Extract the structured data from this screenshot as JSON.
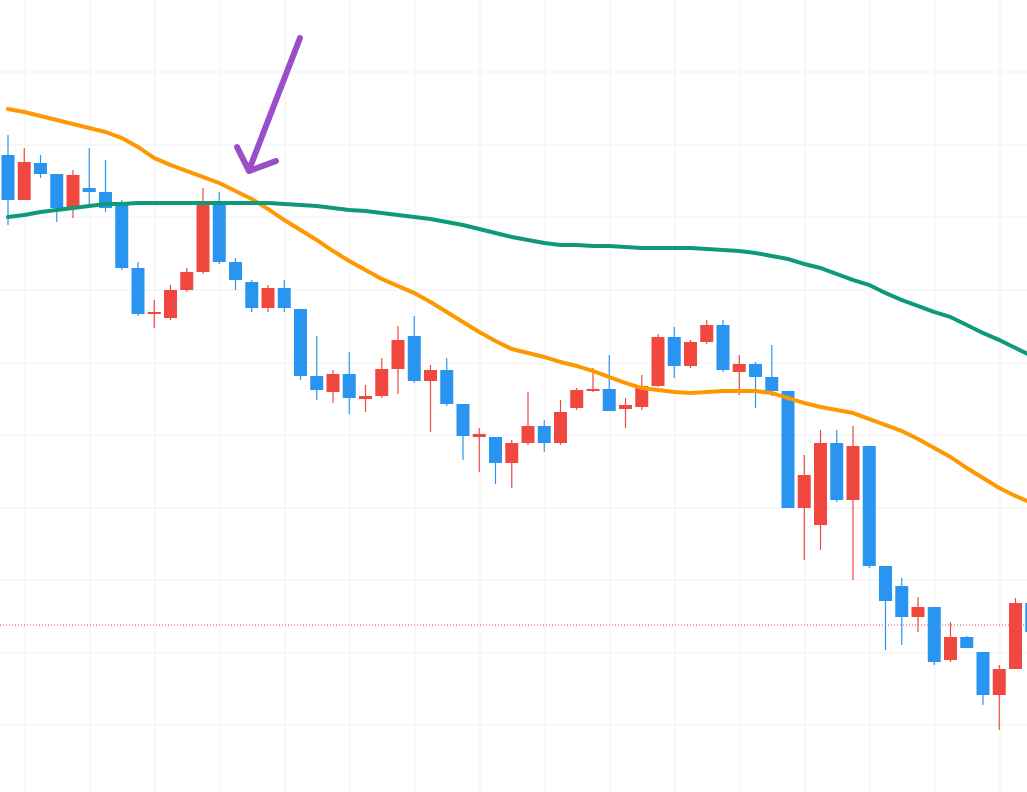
{
  "chart_data": {
    "type": "candlestick",
    "categories": [
      null,
      null,
      null,
      null,
      null,
      null,
      null,
      null,
      null,
      null,
      null,
      null,
      null,
      null,
      null,
      null,
      null,
      null,
      null,
      null,
      null,
      null,
      null,
      null,
      null,
      null,
      null,
      null,
      null,
      null,
      null,
      null,
      null,
      null,
      null,
      null,
      null,
      null,
      null,
      null,
      null,
      null,
      null,
      null,
      null,
      null,
      null,
      null,
      null,
      null,
      null,
      null,
      null,
      null,
      null,
      null,
      null,
      null,
      null,
      null,
      null,
      null,
      null,
      null
    ],
    "open": [
      84.5,
      80,
      83.7,
      82.6,
      79.2,
      81.2,
      80.8,
      79.7,
      73.2,
      68.6,
      68.2,
      71,
      72.8,
      79.7,
      73.8,
      71.8,
      69.2,
      71.2,
      69.1,
      62.4,
      60.8,
      62.6,
      60.1,
      60.4,
      63.1,
      66.4,
      61.9,
      63,
      59.6,
      56.3,
      56.3,
      53.7,
      55.7,
      57.4,
      55.7,
      59.2,
      60.9,
      61.1,
      59.1,
      59.3,
      61.4,
      66.3,
      63.4,
      65.8,
      67.5,
      62.8,
      63.6,
      62.3,
      60.9,
      49.2,
      47.5,
      55.7,
      50,
      55.4,
      43.4,
      41.4,
      38.3,
      39.3,
      34,
      36.3,
      34.8,
      30.5,
      33.1,
      39.7
    ],
    "high": [
      86.5,
      85.2,
      84.5,
      82.6,
      83,
      85.2,
      84,
      80,
      73.8,
      70,
      71.5,
      73.2,
      81.2,
      80.8,
      74.2,
      72,
      71.5,
      72,
      69.1,
      66.4,
      63,
      64.8,
      61.5,
      64.2,
      67.4,
      68.4,
      63.5,
      64.2,
      59.6,
      57.2,
      56.3,
      56,
      60.8,
      58,
      60,
      61.2,
      63.2,
      64.5,
      60.2,
      62.5,
      66.6,
      67.3,
      66,
      68,
      68,
      64.5,
      63.8,
      65.5,
      60.9,
      54.5,
      57,
      57,
      57.4,
      55.4,
      43.4,
      42.2,
      40.3,
      39.3,
      37.8,
      36.4,
      34.8,
      33.5,
      40.2,
      40.2
    ],
    "low": [
      77.5,
      80,
      82.2,
      77.8,
      78.2,
      79.5,
      78.8,
      73,
      68.4,
      67.2,
      68,
      70.8,
      72.6,
      73.6,
      71,
      68.8,
      68.8,
      68.8,
      62,
      60,
      59.7,
      58.6,
      58.8,
      60.2,
      60.6,
      61.7,
      56.8,
      59.4,
      54,
      52.8,
      51.6,
      51.2,
      55.5,
      54.8,
      55.5,
      59,
      60.8,
      58.9,
      57.2,
      59,
      61.3,
      62.2,
      63.2,
      65.6,
      62.8,
      60.5,
      59.2,
      60.4,
      49.2,
      44,
      45,
      49.8,
      42,
      43.2,
      35,
      35.5,
      36.8,
      33.5,
      33.8,
      35.2,
      29.5,
      27,
      33.1,
      36.8
    ],
    "close": [
      80,
      83.8,
      82.6,
      79.2,
      82.5,
      80.8,
      79.2,
      73.2,
      68.6,
      68.8,
      71,
      72.8,
      79.7,
      73.8,
      72,
      69.2,
      71.2,
      69.2,
      62.4,
      61,
      62.6,
      60.2,
      60.4,
      63.1,
      66,
      61.9,
      63,
      59.6,
      56.4,
      56.6,
      53.7,
      55.7,
      57.4,
      55.7,
      58.8,
      61,
      61.1,
      58.9,
      59.5,
      61.4,
      66.3,
      63.4,
      65.8,
      67.5,
      63,
      63.6,
      62.3,
      60.9,
      49.2,
      52.5,
      55.7,
      50,
      55.4,
      43.4,
      39.9,
      38.3,
      39.3,
      33.8,
      36.3,
      35.2,
      30.5,
      33.1,
      39.7,
      36.8
    ],
    "up_color": "#f0483e",
    "down_color": "#2a95f0",
    "series": [
      {
        "color": "#ff9800",
        "values": [
          89.1,
          88.8,
          88.4,
          88,
          87.6,
          87.2,
          86.8,
          86.2,
          85.3,
          84.2,
          83.5,
          82.9,
          82.3,
          81.7,
          80.9,
          80.1,
          79.1,
          78,
          77,
          76,
          74.9,
          73.9,
          73,
          72.1,
          71.4,
          70.7,
          69.8,
          68.8,
          67.8,
          66.8,
          65.9,
          65.1,
          64.7,
          64.3,
          63.8,
          63.4,
          62.9,
          62.3,
          61.7,
          61.2,
          61,
          60.8,
          60.7,
          60.8,
          60.9,
          60.9,
          60.9,
          60.7,
          60.2,
          59.7,
          59.3,
          59,
          58.7,
          58.1,
          57.5,
          56.9,
          56.1,
          55.2,
          54.3,
          53.2,
          52.2,
          51.2,
          50.4,
          49.7
        ]
      },
      {
        "color": "#0e9978",
        "values": [
          78.3,
          78.5,
          78.8,
          79,
          79.2,
          79.4,
          79.6,
          79.6,
          79.7,
          79.7,
          79.7,
          79.7,
          79.7,
          79.7,
          79.7,
          79.7,
          79.7,
          79.6,
          79.5,
          79.4,
          79.2,
          79,
          78.9,
          78.7,
          78.5,
          78.3,
          78.1,
          77.8,
          77.5,
          77.1,
          76.7,
          76.3,
          76,
          75.7,
          75.5,
          75.5,
          75.4,
          75.4,
          75.3,
          75.2,
          75.2,
          75.2,
          75.2,
          75.1,
          75,
          74.9,
          74.7,
          74.4,
          74.1,
          73.6,
          73.2,
          72.6,
          72,
          71.5,
          70.7,
          70,
          69.4,
          68.8,
          68.3,
          67.5,
          66.7,
          66,
          65.2,
          64.4
        ]
      }
    ],
    "price_line": 37.5,
    "price_line_color": "#f0483e",
    "ylim": [
      20.8,
      100
    ],
    "yticks": [
      92.8,
      85.5,
      78.3,
      71,
      63.7,
      56.5,
      49.2,
      42,
      34.7,
      27.5
    ],
    "grid": true
  }
}
